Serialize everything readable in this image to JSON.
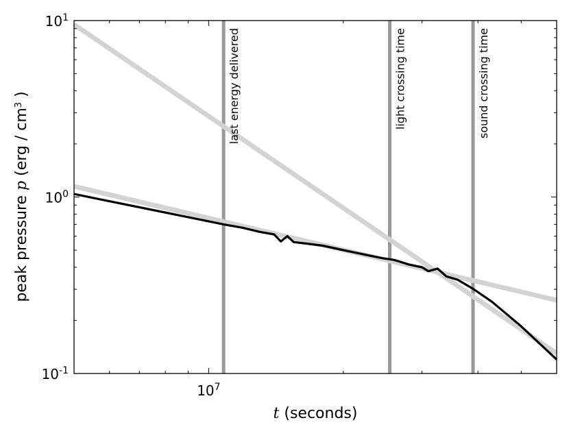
{
  "chart_data": {
    "type": "line",
    "title": "",
    "xlabel_var": "t",
    "xlabel_rest": " (seconds)",
    "ylabel_pre": "peak pressure ",
    "ylabel_var": "p",
    "ylabel_post": " (erg / cm",
    "ylabel_exp": "3",
    "ylabel_close": " )",
    "xscale": "log",
    "yscale": "log",
    "xlim": [
      5000000,
      60000000
    ],
    "ylim": [
      0.1,
      10
    ],
    "grid": false,
    "x_ticks": [
      {
        "base": "10",
        "exp": "7",
        "value": 10000000
      }
    ],
    "y_ticks": [
      {
        "base": "10",
        "exp": "-1",
        "value": 0.1
      },
      {
        "base": "10",
        "exp": "0",
        "value": 1
      },
      {
        "base": "10",
        "exp": "1",
        "value": 10
      }
    ],
    "vlines": [
      {
        "x": 10800000,
        "label": "last energy delivered"
      },
      {
        "x": 25400000,
        "label": "light crossing time"
      },
      {
        "x": 39000000,
        "label": "sound crossing time"
      }
    ],
    "series": [
      {
        "role": "measured",
        "color": "#000000",
        "x": [
          5000000,
          10800000,
          11900000,
          13000000,
          14000000,
          14500000,
          15000000,
          15500000,
          16500000,
          18000000,
          20000000,
          22500000,
          24500000,
          26000000,
          28000000,
          30000000,
          31000000,
          32500000,
          34000000,
          36000000,
          39000000,
          43000000,
          50000000,
          60000000
        ],
        "y": [
          1.04,
          0.7,
          0.67,
          0.635,
          0.615,
          0.56,
          0.6,
          0.555,
          0.545,
          0.53,
          0.5,
          0.47,
          0.45,
          0.44,
          0.415,
          0.4,
          0.38,
          0.393,
          0.355,
          0.34,
          0.302,
          0.255,
          0.185,
          0.12
        ]
      },
      {
        "role": "power-law fit, shallow",
        "color": "#d3d3d3",
        "x": [
          5000000,
          60000000
        ],
        "y": [
          1.15,
          0.26
        ]
      },
      {
        "role": "power-law fit, steep",
        "color": "#d3d3d3",
        "x": [
          5000000,
          60000000
        ],
        "y": [
          9.5,
          0.13
        ]
      }
    ],
    "colors": {
      "vline": "#999999",
      "axes": "#000000"
    }
  }
}
